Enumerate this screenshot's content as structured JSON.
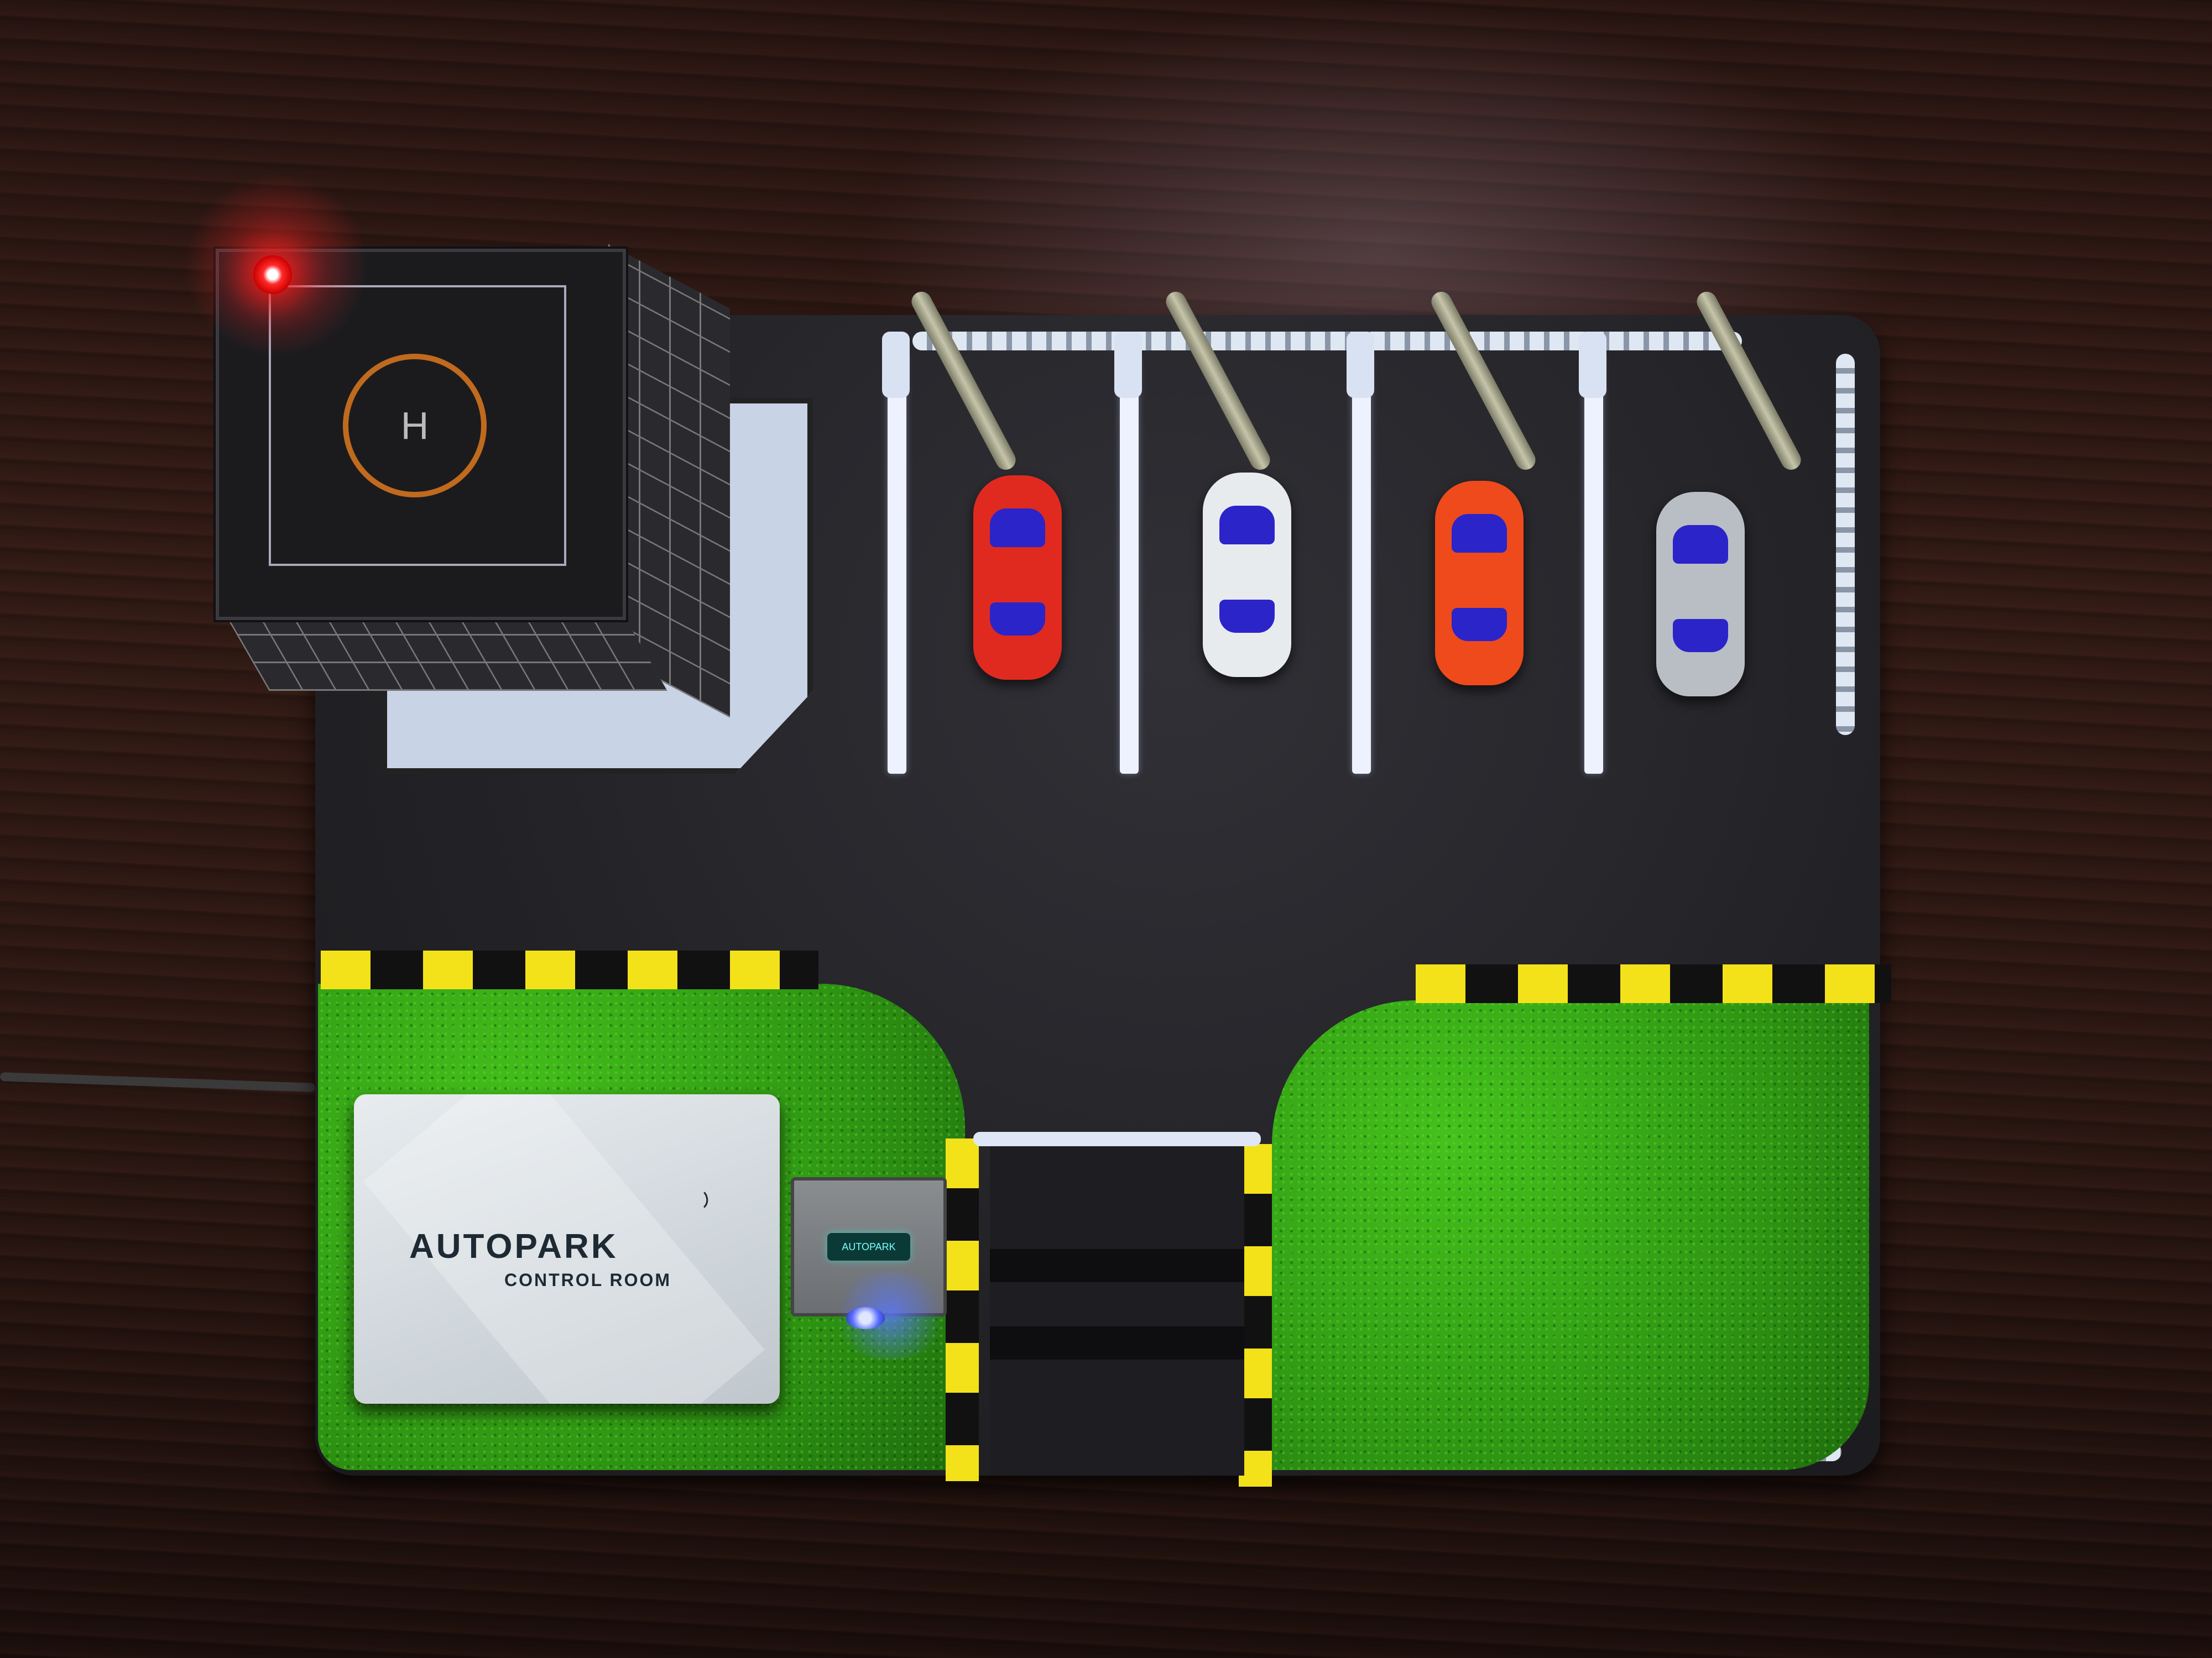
{
  "scene": {
    "description_tag": "model smart parking lot",
    "control_room": {
      "title": "AUTOPARK",
      "subtitle": "CONTROL ROOM"
    },
    "sensor_label": "AUTOPARK",
    "helipad_letter": "H",
    "parked_cars": [
      {
        "color": "#e02a1f"
      },
      {
        "color": "#e8ebee"
      },
      {
        "color": "#ee4a1c"
      },
      {
        "color": "#b9bec4"
      }
    ],
    "colors": {
      "curb_yellow": "#f3e21a",
      "curb_black": "#111111",
      "grass": "#2f9a15",
      "asphalt": "#222226",
      "red_led": "#ff2a2a",
      "blue_led": "#5a6dff"
    }
  }
}
